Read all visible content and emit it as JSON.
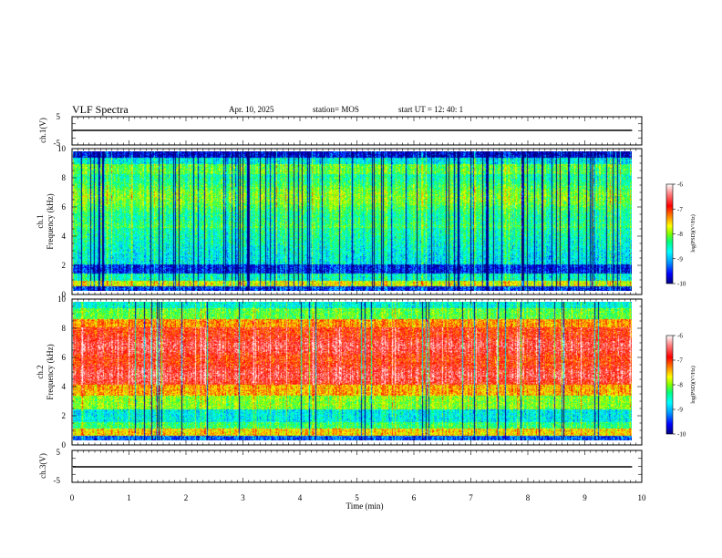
{
  "header": {
    "title": "VLF Spectra",
    "date": "Apr. 10, 2025",
    "station": "station= MOS",
    "start": "start  UT =   12: 40: 1"
  },
  "chart_data": {
    "type": "heatmap",
    "x_axis": {
      "label": "Time (min)",
      "range": [
        0,
        10
      ],
      "ticks": [
        "0",
        "1",
        "2",
        "3",
        "4",
        "5",
        "6",
        "7",
        "8",
        "9",
        "10"
      ],
      "data_end": 9.83
    },
    "panels": [
      {
        "kind": "waveform",
        "ylabel": "ch.1(V)",
        "ylim": [
          -5,
          5
        ],
        "yticks": [
          "5",
          "-5"
        ],
        "trace_level": 0
      },
      {
        "kind": "spectrogram",
        "ylabel_line1": "ch.1",
        "ylabel_line2": "Frequency (kHz)",
        "ylim": [
          0,
          10
        ],
        "yticks": [
          "0",
          "2",
          "4",
          "6",
          "8",
          "10"
        ],
        "colorbar": {
          "label": "log(PSD)(V²/Hz)",
          "range": [
            -10,
            -6
          ],
          "ticks": [
            "-6",
            "-7",
            "-8",
            "-9",
            "-10"
          ]
        }
      },
      {
        "kind": "spectrogram",
        "ylabel_line1": "ch.2",
        "ylabel_line2": "Frequency (kHz)",
        "ylim": [
          0,
          10
        ],
        "yticks": [
          "0",
          "2",
          "4",
          "6",
          "8",
          "10"
        ],
        "colorbar": {
          "label": "log(PSD)(V²/Hz)",
          "range": [
            -10,
            -6
          ],
          "ticks": [
            "-6",
            "-7",
            "-8",
            "-9",
            "-10"
          ]
        }
      },
      {
        "kind": "waveform",
        "ylabel": "ch.3(V)",
        "ylim": [
          -5,
          5
        ],
        "yticks": [
          "5",
          "-5"
        ],
        "trace_level": 0
      }
    ],
    "colormap": [
      "#000080",
      "#0000ff",
      "#00a0ff",
      "#00ffff",
      "#00ff80",
      "#80ff00",
      "#ffff00",
      "#ff8000",
      "#ff0000",
      "#ff8080",
      "#ffffff"
    ]
  }
}
